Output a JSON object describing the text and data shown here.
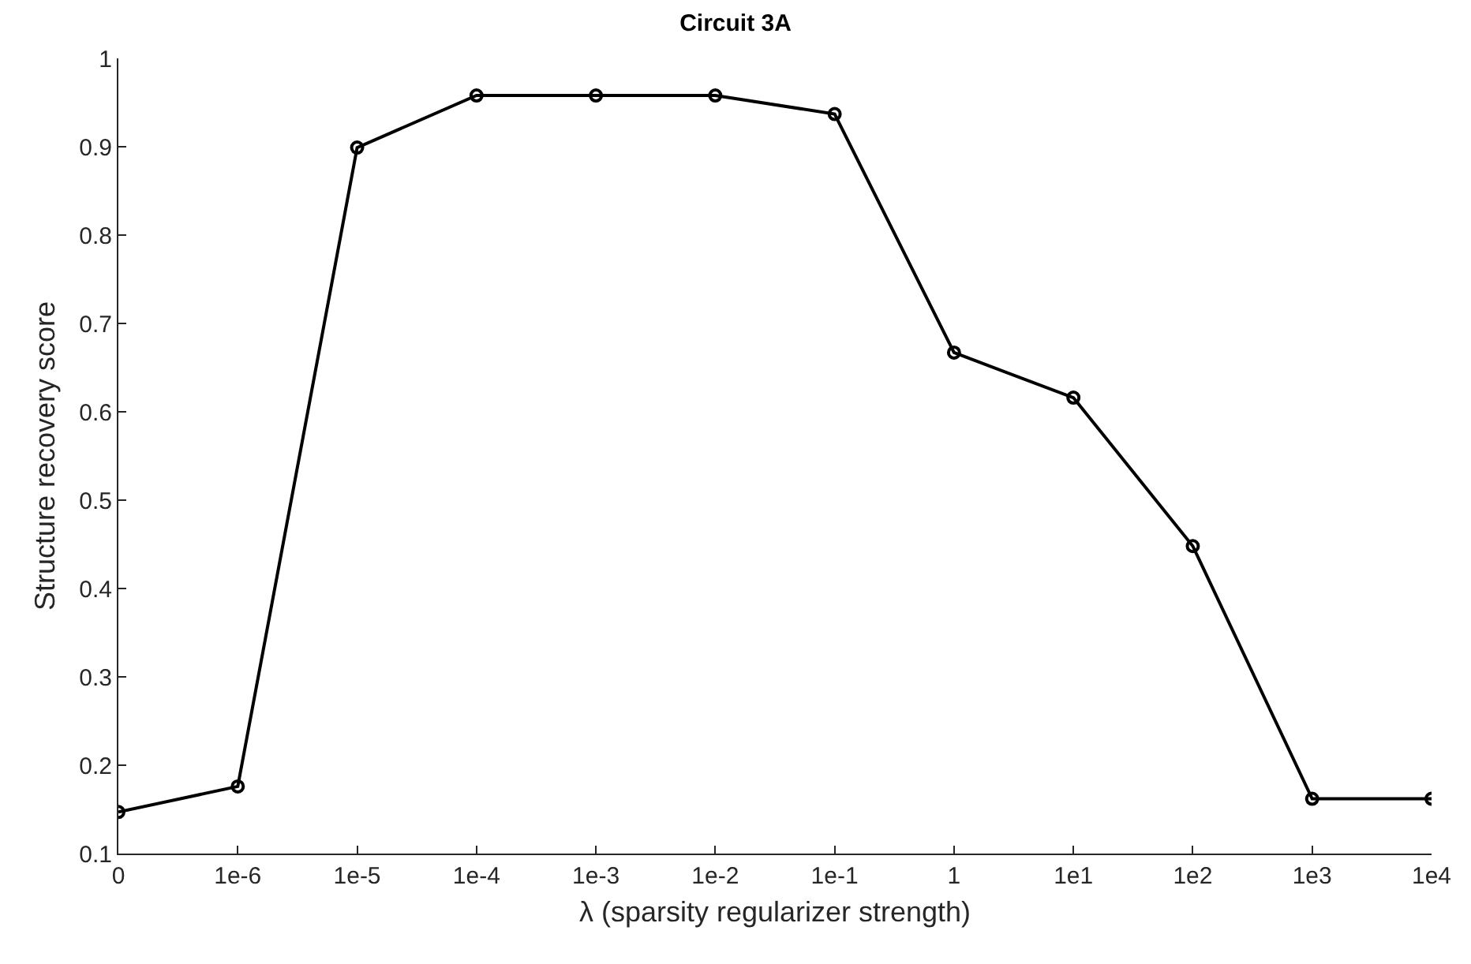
{
  "chart_data": {
    "type": "line",
    "title": "Circuit 3A",
    "xlabel": "λ (sparsity regularizer strength)",
    "ylabel": "Structure recovery score",
    "categories": [
      "0",
      "1e-6",
      "1e-5",
      "1e-4",
      "1e-3",
      "1e-2",
      "1e-1",
      "1",
      "1e1",
      "1e2",
      "1e3",
      "1e4"
    ],
    "series": [
      {
        "color": "#000000",
        "values": [
          0.147,
          0.176,
          0.899,
          0.958,
          0.958,
          0.958,
          0.937,
          0.667,
          0.616,
          0.448,
          0.162,
          0.162
        ]
      }
    ],
    "ylim": [
      0.1,
      1
    ],
    "yticks": [
      0.1,
      0.2,
      0.3,
      0.4,
      0.5,
      0.6,
      0.7,
      0.8,
      0.9,
      1
    ],
    "marker": "circle",
    "line_style": "solid"
  }
}
